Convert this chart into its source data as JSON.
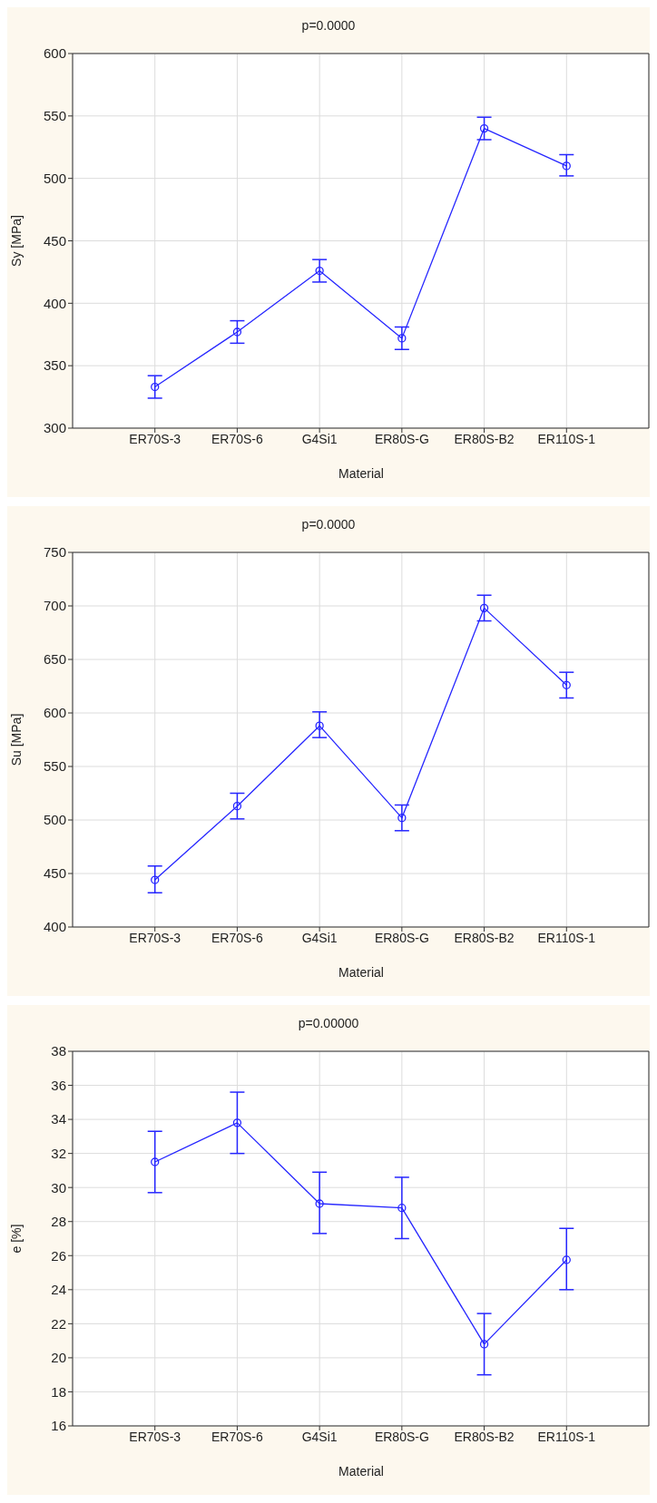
{
  "chart_data": [
    {
      "type": "line",
      "title": "p=0.0000",
      "xlabel": "Material",
      "ylabel": "Sy [MPa]",
      "categories": [
        "ER70S-3",
        "ER70S-6",
        "G4Si1",
        "ER80S-G",
        "ER80S-B2",
        "ER110S-1"
      ],
      "series": [
        {
          "color": "#2626ff",
          "values": [
            333,
            377,
            426,
            372,
            540,
            510
          ],
          "errors": [
            [
              324,
              342
            ],
            [
              368,
              386
            ],
            [
              417,
              435
            ],
            [
              363,
              381
            ],
            [
              531,
              549
            ],
            [
              502,
              519
            ]
          ]
        }
      ],
      "ylim": [
        300,
        600
      ],
      "yticks": [
        300,
        350,
        400,
        450,
        500,
        550,
        600
      ],
      "grid": true,
      "marker": "circle",
      "line_style": "solid"
    },
    {
      "type": "line",
      "title": "p=0.0000",
      "xlabel": "Material",
      "ylabel": "Su [MPa]",
      "categories": [
        "ER70S-3",
        "ER70S-6",
        "G4Si1",
        "ER80S-G",
        "ER80S-B2",
        "ER110S-1"
      ],
      "series": [
        {
          "color": "#2626ff",
          "values": [
            444,
            513,
            588,
            502,
            698,
            626
          ],
          "errors": [
            [
              432,
              457
            ],
            [
              501,
              525
            ],
            [
              577,
              601
            ],
            [
              490,
              514
            ],
            [
              686,
              710
            ],
            [
              614,
              638
            ]
          ]
        }
      ],
      "ylim": [
        400,
        750
      ],
      "yticks": [
        400,
        450,
        500,
        550,
        600,
        650,
        700,
        750
      ],
      "grid": true,
      "marker": "circle",
      "line_style": "solid"
    },
    {
      "type": "line",
      "title": "p=0.00000",
      "xlabel": "Material",
      "ylabel": "e [%]",
      "categories": [
        "ER70S-3",
        "ER70S-6",
        "G4Si1",
        "ER80S-G",
        "ER80S-B2",
        "ER110S-1"
      ],
      "series": [
        {
          "color": "#2626ff",
          "values": [
            31.5,
            33.8,
            29.05,
            28.8,
            20.8,
            25.75
          ],
          "errors": [
            [
              29.7,
              33.3
            ],
            [
              32,
              35.6
            ],
            [
              27.3,
              30.9
            ],
            [
              27,
              30.6
            ],
            [
              19,
              22.6
            ],
            [
              24,
              27.6
            ]
          ]
        }
      ],
      "ylim": [
        16,
        38
      ],
      "yticks": [
        16,
        18,
        20,
        22,
        24,
        26,
        28,
        30,
        32,
        34,
        36,
        38
      ],
      "grid": true,
      "marker": "circle",
      "line_style": "solid"
    }
  ]
}
